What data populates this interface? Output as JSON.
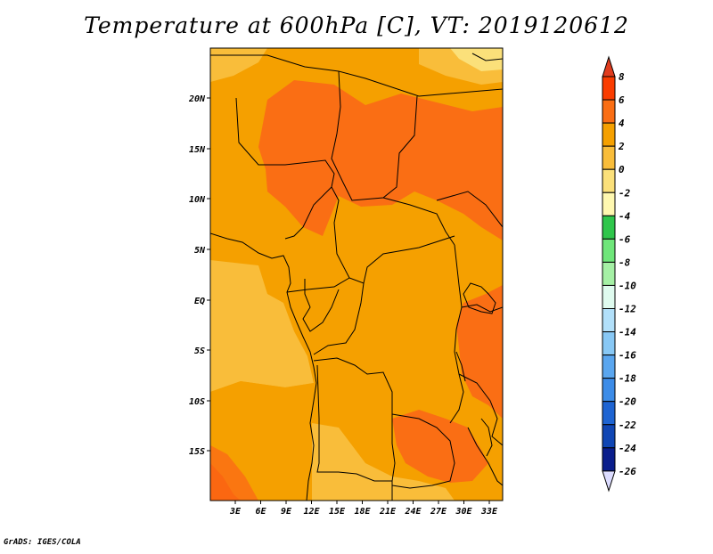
{
  "title": "Temperature at 600hPa [C], VT: 2019120612",
  "credit": "GrADS: IGES/COLA",
  "map": {
    "lat_labels": [
      "20N",
      "15N",
      "10N",
      "5N",
      "EQ",
      "5S",
      "10S",
      "15S"
    ],
    "lon_labels": [
      "3E",
      "6E",
      "9E",
      "12E",
      "15E",
      "18E",
      "21E",
      "24E",
      "27E",
      "30E",
      "33E"
    ]
  },
  "colorbar": {
    "levels": [
      "8",
      "6",
      "4",
      "2",
      "0",
      "-2",
      "-4",
      "-6",
      "-8",
      "-10",
      "-12",
      "-14",
      "-16",
      "-18",
      "-20",
      "-22",
      "-24",
      "-26"
    ],
    "colors": [
      "#e03c1e",
      "#fa3c00",
      "#fa6e14",
      "#f5a000",
      "#f9bd3a",
      "#fbe07a",
      "#fff8b0",
      "#2fc64b",
      "#6fe67a",
      "#a5f0a5",
      "#dffbef",
      "#b2e0fa",
      "#88c8f5",
      "#5aa6ef",
      "#3c8ce8",
      "#1e64d2",
      "#1046b4",
      "#0a1e8c",
      "#dcdcff"
    ]
  },
  "colors": {
    "plus4_6": "#fa6e14",
    "plus2_4": "#f5a000",
    "zero_2": "#f9bd3a",
    "minus2_0": "#fbe07a",
    "minus4_minus2": "#fff8b0",
    "plus6_8": "#fa3c00"
  }
}
